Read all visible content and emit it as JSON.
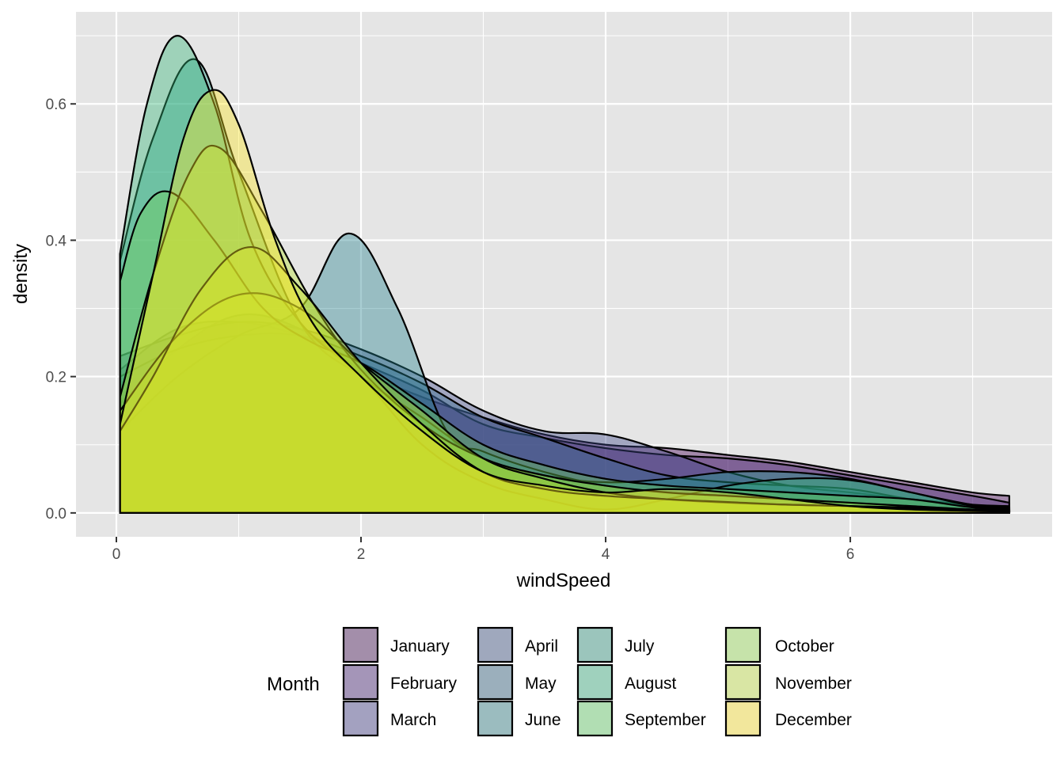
{
  "chart_data": {
    "type": "area",
    "subtype": "density",
    "xlabel": "windSpeed",
    "ylabel": "density",
    "xlim": [
      -0.33,
      7.65
    ],
    "ylim": [
      -0.035,
      0.735
    ],
    "x_ticks": [
      0,
      2,
      4,
      6
    ],
    "x_tick_labels": [
      "0",
      "2",
      "4",
      "6"
    ],
    "y_ticks": [
      0.0,
      0.2,
      0.4,
      0.6
    ],
    "y_tick_labels": [
      "0.0",
      "0.2",
      "0.4",
      "0.6"
    ],
    "grid": true,
    "legend_title": "Month",
    "legend_position": "bottom",
    "x_range": [
      0.03,
      7.3
    ],
    "series": [
      {
        "name": "January",
        "color": "#440154",
        "fill_alpha": 0.4,
        "x": [
          0.03,
          0.5,
          1.0,
          1.5,
          2.0,
          2.5,
          3.0,
          3.5,
          4.0,
          4.5,
          5.0,
          5.5,
          6.0,
          6.5,
          7.0,
          7.3
        ],
        "y": [
          0.16,
          0.24,
          0.29,
          0.27,
          0.21,
          0.17,
          0.14,
          0.115,
          0.1,
          0.095,
          0.085,
          0.075,
          0.06,
          0.045,
          0.03,
          0.025
        ]
      },
      {
        "name": "February",
        "color": "#482878",
        "fill_alpha": 0.4,
        "x": [
          0.03,
          0.5,
          1.0,
          1.5,
          2.0,
          2.5,
          3.0,
          3.5,
          4.0,
          4.5,
          5.0,
          5.5,
          6.0,
          6.5,
          7.0,
          7.3
        ],
        "y": [
          0.21,
          0.27,
          0.28,
          0.26,
          0.22,
          0.18,
          0.13,
          0.11,
          0.095,
          0.085,
          0.08,
          0.07,
          0.055,
          0.04,
          0.025,
          0.015
        ]
      },
      {
        "name": "March",
        "color": "#3e4989",
        "fill_alpha": 0.4,
        "x": [
          0.03,
          0.5,
          1.0,
          1.5,
          2.0,
          2.5,
          3.0,
          3.5,
          4.0,
          4.5,
          5.0,
          5.5,
          6.0,
          6.5,
          7.0,
          7.3
        ],
        "y": [
          0.23,
          0.26,
          0.28,
          0.27,
          0.24,
          0.2,
          0.15,
          0.12,
          0.115,
          0.09,
          0.06,
          0.04,
          0.03,
          0.02,
          0.012,
          0.01
        ]
      },
      {
        "name": "April",
        "color": "#31688e",
        "fill_alpha": 0.4,
        "x": [
          0.03,
          0.5,
          1.0,
          1.5,
          2.0,
          2.5,
          3.0,
          3.5,
          4.0,
          4.5,
          5.0,
          5.5,
          6.0,
          6.5,
          7.0,
          7.3
        ],
        "y": [
          0.2,
          0.24,
          0.26,
          0.26,
          0.23,
          0.19,
          0.14,
          0.11,
          0.08,
          0.055,
          0.045,
          0.04,
          0.035,
          0.02,
          0.01,
          0.008
        ]
      },
      {
        "name": "May",
        "color": "#26828e",
        "fill_alpha": 0.4,
        "x": [
          0.03,
          0.5,
          1.0,
          1.5,
          1.9,
          2.3,
          2.7,
          3.0,
          3.5,
          4.0,
          4.5,
          5.0,
          5.5,
          6.0,
          6.5,
          7.0,
          7.3
        ],
        "y": [
          0.12,
          0.2,
          0.26,
          0.3,
          0.41,
          0.3,
          0.12,
          0.09,
          0.06,
          0.04,
          0.03,
          0.025,
          0.02,
          0.015,
          0.01,
          0.005,
          0.004
        ]
      },
      {
        "name": "June",
        "color": "#1f9e89",
        "fill_alpha": 0.4,
        "x": [
          0.03,
          0.3,
          0.65,
          1.0,
          1.5,
          2.0,
          2.5,
          3.0,
          3.5,
          4.0,
          4.5,
          5.0,
          5.5,
          6.0,
          6.5,
          7.0,
          7.3
        ],
        "y": [
          0.37,
          0.55,
          0.665,
          0.5,
          0.28,
          0.2,
          0.14,
          0.08,
          0.055,
          0.045,
          0.05,
          0.06,
          0.06,
          0.05,
          0.03,
          0.012,
          0.008
        ]
      },
      {
        "name": "July",
        "color": "#35b779",
        "fill_alpha": 0.4,
        "x": [
          0.03,
          0.25,
          0.5,
          0.8,
          1.1,
          1.5,
          2.0,
          2.5,
          3.0,
          3.5,
          4.0,
          4.5,
          5.0,
          5.5,
          6.0,
          6.5,
          7.0,
          7.3
        ],
        "y": [
          0.38,
          0.6,
          0.7,
          0.6,
          0.4,
          0.28,
          0.2,
          0.1,
          0.045,
          0.02,
          0.005,
          0.02,
          0.04,
          0.05,
          0.048,
          0.03,
          0.01,
          0.006
        ]
      },
      {
        "name": "August",
        "color": "#6ece58",
        "fill_alpha": 0.4,
        "x": [
          0.03,
          0.2,
          0.45,
          0.8,
          1.2,
          1.6,
          2.0,
          2.5,
          3.0,
          3.5,
          4.0,
          4.5,
          5.0,
          5.5,
          6.0,
          6.5,
          7.0,
          7.3
        ],
        "y": [
          0.34,
          0.44,
          0.47,
          0.4,
          0.3,
          0.25,
          0.22,
          0.16,
          0.1,
          0.07,
          0.05,
          0.04,
          0.035,
          0.03,
          0.025,
          0.02,
          0.008,
          0.005
        ]
      },
      {
        "name": "September",
        "color": "#b5de2b",
        "fill_alpha": 0.4,
        "x": [
          0.03,
          0.3,
          0.6,
          0.85,
          1.2,
          1.6,
          2.0,
          2.5,
          3.0,
          3.5,
          4.0,
          4.5,
          5.0,
          5.5,
          6.0,
          6.5,
          7.0,
          7.3
        ],
        "y": [
          0.17,
          0.35,
          0.5,
          0.535,
          0.44,
          0.31,
          0.21,
          0.13,
          0.08,
          0.055,
          0.04,
          0.03,
          0.025,
          0.02,
          0.015,
          0.01,
          0.005,
          0.004
        ]
      },
      {
        "name": "October",
        "color": "#b5de2b",
        "fill_alpha": 0.4,
        "x": [
          0.03,
          0.5,
          1.0,
          1.5,
          2.0,
          2.5,
          3.0,
          3.5,
          4.0,
          4.5,
          5.0,
          5.5,
          6.0,
          6.5,
          7.0,
          7.3
        ],
        "y": [
          0.15,
          0.26,
          0.32,
          0.3,
          0.22,
          0.15,
          0.08,
          0.05,
          0.03,
          0.02,
          0.015,
          0.012,
          0.01,
          0.008,
          0.005,
          0.004
        ]
      },
      {
        "name": "November",
        "color": "#c8e020",
        "fill_alpha": 0.4,
        "x": [
          0.03,
          0.3,
          0.7,
          1.1,
          1.5,
          2.0,
          2.5,
          3.0,
          3.5,
          4.0,
          4.5,
          5.0,
          5.5,
          6.0,
          6.5,
          7.0,
          7.3
        ],
        "y": [
          0.12,
          0.2,
          0.33,
          0.39,
          0.33,
          0.22,
          0.13,
          0.06,
          0.035,
          0.025,
          0.02,
          0.016,
          0.012,
          0.01,
          0.007,
          0.004,
          0.003
        ]
      },
      {
        "name": "December",
        "color": "#fde725",
        "fill_alpha": 0.4,
        "x": [
          0.03,
          0.3,
          0.55,
          0.78,
          1.0,
          1.3,
          1.6,
          2.0,
          2.5,
          3.0,
          3.5,
          4.0,
          4.5,
          5.0,
          5.5,
          6.0,
          6.5,
          7.0,
          7.3
        ],
        "y": [
          0.13,
          0.35,
          0.55,
          0.62,
          0.57,
          0.4,
          0.28,
          0.2,
          0.12,
          0.06,
          0.04,
          0.03,
          0.035,
          0.03,
          0.02,
          0.01,
          0.005,
          0.003,
          0.002
        ]
      }
    ]
  },
  "legend": {
    "title": "Month",
    "items": [
      {
        "label": "January",
        "swatch": "#a38eaa"
      },
      {
        "label": "February",
        "swatch": "#a495b8"
      },
      {
        "label": "March",
        "swatch": "#a3a1c0"
      },
      {
        "label": "April",
        "swatch": "#9fa8bd"
      },
      {
        "label": "May",
        "swatch": "#9bafbc"
      },
      {
        "label": "June",
        "swatch": "#9bbcbf"
      },
      {
        "label": "July",
        "swatch": "#9bc5bc"
      },
      {
        "label": "August",
        "swatch": "#9fd1bd"
      },
      {
        "label": "September",
        "swatch": "#b1deb3"
      },
      {
        "label": "October",
        "swatch": "#c6e3aa"
      },
      {
        "label": "November",
        "swatch": "#d9e6a4"
      },
      {
        "label": "December",
        "swatch": "#f2e79c"
      }
    ]
  },
  "colors": {
    "panel_background": "#e5e5e5",
    "grid_line": "#ffffff",
    "outline": "#000000",
    "tick_text": "#4d4d4d"
  }
}
